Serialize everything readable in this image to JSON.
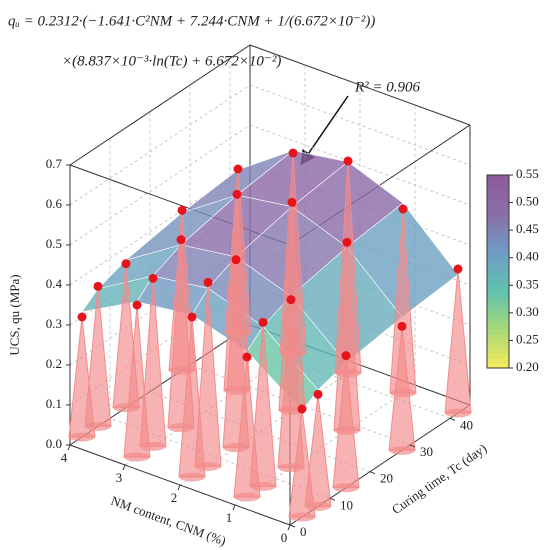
{
  "chart_data": {
    "type": "surface3d",
    "title_lines": [
      "qᵤ = 0.2312·(−1.641·C²NM + 7.244·CNM + 1/(6.672×10⁻²))",
      "×(8.837×10⁻³·ln(Tc) + 6.672×10⁻²)"
    ],
    "annotation": "R² = 0.906",
    "xlabel": "NM content, CNM (%)",
    "ylabel": "Curing time, Tc (day)",
    "zlabel": "UCS, qu (MPa)",
    "xlim": [
      0,
      4
    ],
    "xticks": [
      0,
      1,
      2,
      3,
      4
    ],
    "ylim": [
      0,
      45
    ],
    "yticks": [
      0,
      10,
      20,
      30,
      40
    ],
    "zlim": [
      0,
      0.7
    ],
    "zticks": [
      {
        "value": 0,
        "label": "0.0"
      },
      0.1,
      0.2,
      0.3,
      0.4,
      0.5,
      0.6,
      0.7
    ],
    "grid": true,
    "points": {
      "x": [
        0,
        0,
        0,
        0,
        0,
        1,
        1,
        1,
        1,
        1,
        2,
        2,
        2,
        2,
        2,
        3,
        3,
        3,
        3,
        3,
        4,
        4,
        4,
        4,
        4
      ],
      "y": [
        3,
        7,
        14,
        28,
        42,
        3,
        7,
        14,
        28,
        42,
        3,
        7,
        14,
        28,
        42,
        3,
        7,
        14,
        28,
        42,
        3,
        7,
        14,
        28,
        42
      ],
      "values": [
        0.27,
        0.28,
        0.33,
        0.31,
        0.36,
        0.35,
        0.41,
        0.42,
        0.47,
        0.46,
        0.4,
        0.46,
        0.47,
        0.52,
        0.53,
        0.38,
        0.42,
        0.47,
        0.49,
        0.5,
        0.3,
        0.35,
        0.36,
        0.4,
        0.41
      ],
      "point_color": "#e8141c",
      "cone_color": "#f28b8b"
    },
    "surface": {
      "x": [
        0,
        1,
        2,
        3,
        4
      ],
      "y": [
        3,
        7,
        14,
        28,
        42
      ],
      "z": [
        [
          0.265,
          0.291,
          0.312,
          0.333,
          0.346
        ],
        [
          0.364,
          0.4,
          0.429,
          0.458,
          0.475
        ],
        [
          0.405,
          0.445,
          0.477,
          0.509,
          0.528
        ],
        [
          0.388,
          0.426,
          0.457,
          0.488,
          0.506
        ],
        [
          0.313,
          0.344,
          0.369,
          0.394,
          0.408
        ]
      ]
    },
    "colorscale": [
      "#f7ea5a",
      "#a8d977",
      "#5fc3ae",
      "#6e9dc4",
      "#8a6ea9",
      "#8e5a9e"
    ],
    "clim": [
      0.2,
      0.55
    ],
    "colorbar_ticks": [
      {
        "value": 0.2,
        "label": "0.20"
      },
      {
        "value": 0.25,
        "label": "0.25"
      },
      {
        "value": 0.3,
        "label": "0.30"
      },
      {
        "value": 0.35,
        "label": "0.35"
      },
      {
        "value": 0.4,
        "label": "0.40"
      },
      {
        "value": 0.45,
        "label": "0.45"
      },
      {
        "value": 0.5,
        "label": "0.50"
      },
      {
        "value": 0.55,
        "label": "0.55"
      }
    ]
  }
}
